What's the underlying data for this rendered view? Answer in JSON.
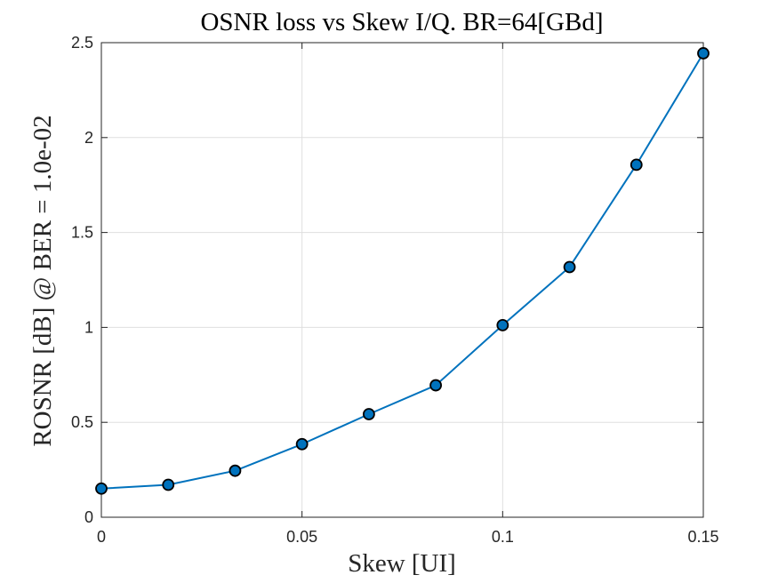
{
  "chart_data": {
    "type": "line",
    "title": "OSNR loss vs Skew I/Q. BR=64[GBd]",
    "xlabel": "Skew [UI]",
    "ylabel": "ROSNR [dB] @ BER = 1.0e-02",
    "xlim": [
      0,
      0.15
    ],
    "ylim": [
      0,
      2.5
    ],
    "xticks": [
      0,
      0.05,
      0.1,
      0.15
    ],
    "xtick_labels": [
      "0",
      "0.05",
      "0.1",
      "0.15"
    ],
    "yticks": [
      0,
      0.5,
      1,
      1.5,
      2,
      2.5
    ],
    "ytick_labels": [
      "0",
      "0.5",
      "1",
      "1.5",
      "2",
      "2.5"
    ],
    "grid": true,
    "series": [
      {
        "x": [
          0,
          0.01667,
          0.03333,
          0.05,
          0.06667,
          0.08333,
          0.1,
          0.11667,
          0.13333,
          0.15
        ],
        "y": [
          0.151,
          0.171,
          0.245,
          0.385,
          0.543,
          0.695,
          1.012,
          1.318,
          1.857,
          2.444
        ],
        "color": "#0072BD",
        "marker": "circle",
        "marker_edge": "#000000"
      }
    ]
  }
}
